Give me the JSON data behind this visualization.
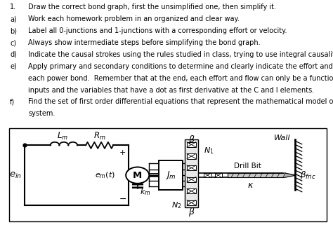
{
  "bg_color": "#ffffff",
  "text_color": "#000000",
  "text_lines": [
    [
      "1.",
      "Draw the correct bond graph, first the unsimplified one, then simplify it."
    ],
    [
      "a)",
      "Work each homework problem in an organized and clear way."
    ],
    [
      "b)",
      "Label all 0-junctions and 1-junctions with a corresponding effort or velocity."
    ],
    [
      "c)",
      "Always show intermediate steps before simplifying the bond graph."
    ],
    [
      "d)",
      "Indicate the causal strokes using the rules studied in class, trying to use integral causality."
    ],
    [
      "e)",
      "Apply primary and secondary conditions to determine and clearly indicate the effort and flow in"
    ],
    [
      "",
      "each power bond.  Remember that at the end, each effort and flow can only be a function of the"
    ],
    [
      "",
      "inputs and the variables that have a dot as first derivative at the C and I elements."
    ],
    [
      "f)",
      "Find the set of first order differential equations that represent the mathematical model of the"
    ],
    [
      "",
      "system."
    ]
  ]
}
